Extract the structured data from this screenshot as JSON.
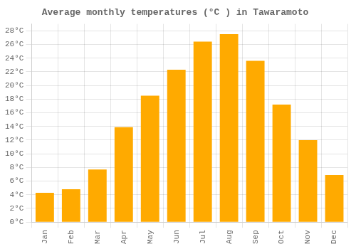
{
  "chart_data": {
    "type": "bar",
    "title": "Average monthly temperatures (°C ) in Tawaramoto",
    "categories": [
      "Jan",
      "Feb",
      "Mar",
      "Apr",
      "May",
      "Jun",
      "Jul",
      "Aug",
      "Sep",
      "Oct",
      "Nov",
      "Dec"
    ],
    "values": [
      4.3,
      4.8,
      7.7,
      13.9,
      18.5,
      22.3,
      26.4,
      27.5,
      23.6,
      17.2,
      12.0,
      6.9
    ],
    "color": "#FFAA00",
    "ylim": [
      0,
      29
    ],
    "yticks": [
      {
        "value": 0,
        "label": "0°C"
      },
      {
        "value": 2,
        "label": "2°C"
      },
      {
        "value": 4,
        "label": "4°C"
      },
      {
        "value": 6,
        "label": "6°C"
      },
      {
        "value": 8,
        "label": "8°C"
      },
      {
        "value": 10,
        "label": "10°C"
      },
      {
        "value": 12,
        "label": "12°C"
      },
      {
        "value": 14,
        "label": "14°C"
      },
      {
        "value": 16,
        "label": "16°C"
      },
      {
        "value": 18,
        "label": "18°C"
      },
      {
        "value": 20,
        "label": "20°C"
      },
      {
        "value": 22,
        "label": "22°C"
      },
      {
        "value": 24,
        "label": "24°C"
      },
      {
        "value": 26,
        "label": "26°C"
      },
      {
        "value": 28,
        "label": "28°C"
      }
    ],
    "grid": true
  }
}
